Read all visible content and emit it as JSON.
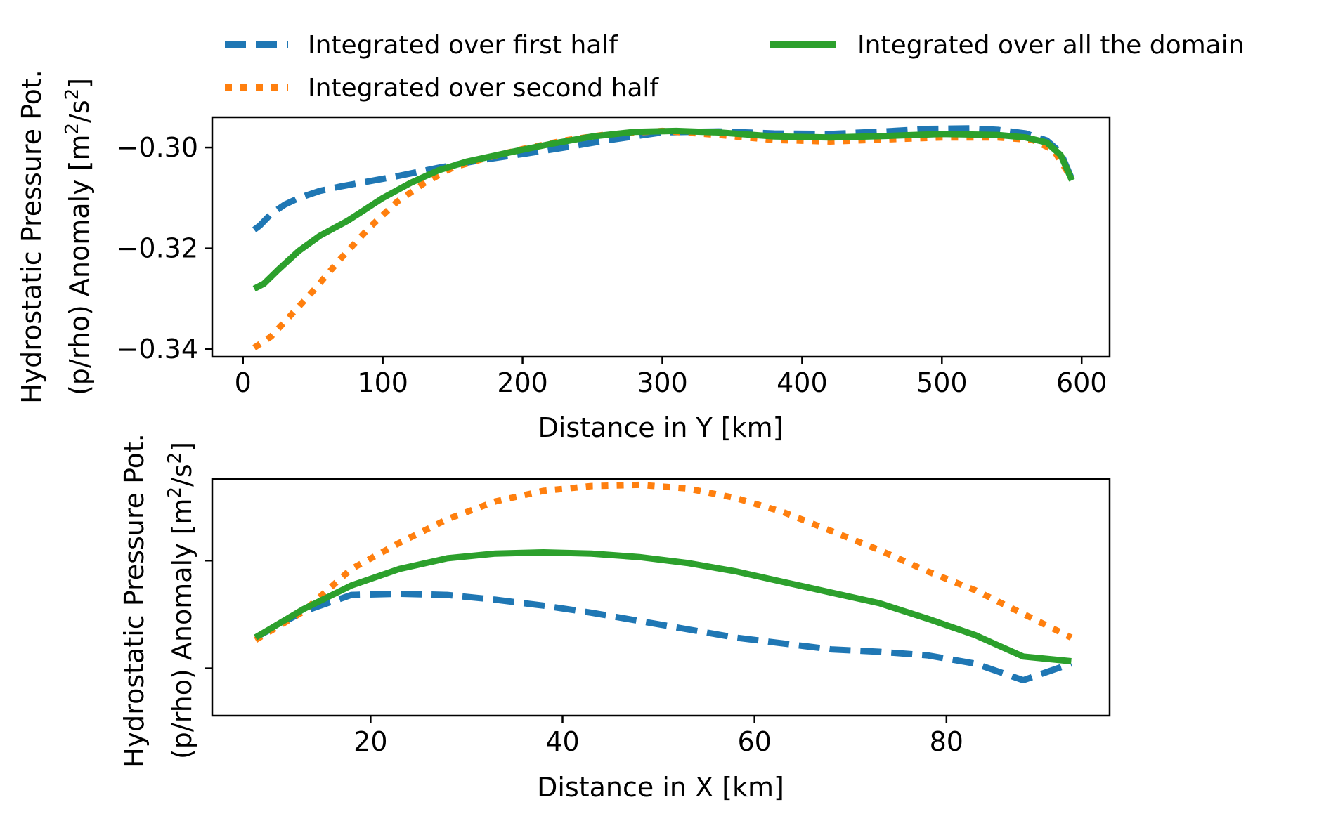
{
  "chart_data": [
    {
      "type": "line",
      "xlabel": "Distance in Y [km]",
      "ylabel_line1": "Hydrostatic Pressure Pot.",
      "ylabel_line2_prefix": "(p/rho) Anomaly [m",
      "ylabel_sup1": "2",
      "ylabel_mid": "/s",
      "ylabel_sup2": "2",
      "ylabel_suffix": "]",
      "xlim": [
        -22,
        620
      ],
      "ylim": [
        -0.3415,
        -0.294
      ],
      "xticks": [
        0,
        100,
        200,
        300,
        400,
        500,
        600
      ],
      "xtick_labels": [
        "0",
        "100",
        "200",
        "300",
        "400",
        "500",
        "600"
      ],
      "yticks": [
        -0.3,
        -0.32,
        -0.34
      ],
      "ytick_labels": [
        "−0.30",
        "−0.32",
        "−0.34"
      ],
      "series": [
        {
          "name": "Integrated over first half",
          "color": "#1f77b4",
          "style": "dashed",
          "x": [
            8,
            12,
            20,
            30,
            40,
            55,
            70,
            90,
            110,
            140,
            170,
            200,
            230,
            260,
            300,
            340,
            380,
            420,
            460,
            490,
            520,
            540,
            560,
            575,
            585,
            593
          ],
          "y": [
            -0.3163,
            -0.3155,
            -0.3132,
            -0.3113,
            -0.31,
            -0.3086,
            -0.3077,
            -0.3067,
            -0.3057,
            -0.304,
            -0.3025,
            -0.3013,
            -0.3,
            -0.2986,
            -0.297,
            -0.2968,
            -0.2972,
            -0.2973,
            -0.2968,
            -0.2963,
            -0.2962,
            -0.2965,
            -0.2972,
            -0.2986,
            -0.301,
            -0.3063
          ]
        },
        {
          "name": "Integrated over second half",
          "color": "#ff7f0e",
          "style": "dotted",
          "x": [
            8,
            20,
            35,
            50,
            70,
            90,
            110,
            130,
            150,
            175,
            200,
            230,
            260,
            300,
            340,
            380,
            420,
            460,
            500,
            540,
            565,
            580,
            593
          ],
          "y": [
            -0.3397,
            -0.3375,
            -0.333,
            -0.3285,
            -0.322,
            -0.316,
            -0.3108,
            -0.307,
            -0.304,
            -0.302,
            -0.3003,
            -0.2986,
            -0.2974,
            -0.2967,
            -0.2975,
            -0.2985,
            -0.2988,
            -0.2984,
            -0.298,
            -0.298,
            -0.2985,
            -0.3005,
            -0.3062
          ]
        },
        {
          "name": "Integrated over all the domain",
          "color": "#2ca02c",
          "style": "solid",
          "x": [
            8,
            15,
            25,
            40,
            55,
            75,
            100,
            120,
            140,
            160,
            190,
            220,
            250,
            280,
            310,
            340,
            380,
            420,
            460,
            500,
            540,
            560,
            575,
            585,
            593
          ],
          "y": [
            -0.328,
            -0.327,
            -0.3243,
            -0.3205,
            -0.3175,
            -0.3145,
            -0.31,
            -0.307,
            -0.3045,
            -0.3028,
            -0.301,
            -0.2993,
            -0.2978,
            -0.2969,
            -0.2967,
            -0.297,
            -0.2978,
            -0.298,
            -0.2977,
            -0.2973,
            -0.2975,
            -0.298,
            -0.299,
            -0.3015,
            -0.3065
          ]
        }
      ]
    },
    {
      "type": "line",
      "xlabel": "Distance in X [km]",
      "ylabel_line1": "Hydrostatic Pressure Pot.",
      "ylabel_line2_prefix": "(p/rho) Anomaly [m",
      "ylabel_sup1": "2",
      "ylabel_mid": "/s",
      "ylabel_sup2": "2",
      "ylabel_suffix": "]",
      "xlim": [
        3.5,
        97
      ],
      "ylim": [
        0.0,
        1.0
      ],
      "xticks": [
        20,
        40,
        60,
        80
      ],
      "xtick_labels": [
        "20",
        "40",
        "60",
        "80"
      ],
      "yticks": [
        0.2,
        0.655
      ],
      "ytick_labels": [
        "",
        ""
      ],
      "series": [
        {
          "name": "Integrated over first half",
          "color": "#1f77b4",
          "style": "dashed",
          "x": [
            8,
            13,
            18,
            23,
            28,
            33,
            38,
            43,
            48,
            53,
            58,
            63,
            68,
            73,
            78,
            83,
            88,
            93
          ],
          "y": [
            0.33,
            0.44,
            0.51,
            0.515,
            0.51,
            0.49,
            0.465,
            0.435,
            0.4,
            0.365,
            0.33,
            0.305,
            0.28,
            0.27,
            0.255,
            0.22,
            0.15,
            0.22
          ]
        },
        {
          "name": "Integrated over second half",
          "color": "#ff7f0e",
          "style": "dotted",
          "x": [
            8,
            13,
            18,
            23,
            28,
            33,
            38,
            43,
            48,
            53,
            58,
            63,
            68,
            73,
            78,
            83,
            88,
            93
          ],
          "y": [
            0.32,
            0.44,
            0.62,
            0.73,
            0.83,
            0.905,
            0.95,
            0.97,
            0.975,
            0.96,
            0.92,
            0.86,
            0.78,
            0.7,
            0.61,
            0.53,
            0.43,
            0.33
          ]
        },
        {
          "name": "Integrated over all the domain",
          "color": "#2ca02c",
          "style": "solid",
          "x": [
            8,
            13,
            18,
            23,
            28,
            33,
            38,
            43,
            48,
            53,
            58,
            63,
            68,
            73,
            78,
            83,
            88,
            93
          ],
          "y": [
            0.33,
            0.45,
            0.55,
            0.62,
            0.665,
            0.685,
            0.69,
            0.685,
            0.67,
            0.645,
            0.61,
            0.565,
            0.52,
            0.475,
            0.41,
            0.34,
            0.25,
            0.23
          ]
        }
      ]
    }
  ]
}
